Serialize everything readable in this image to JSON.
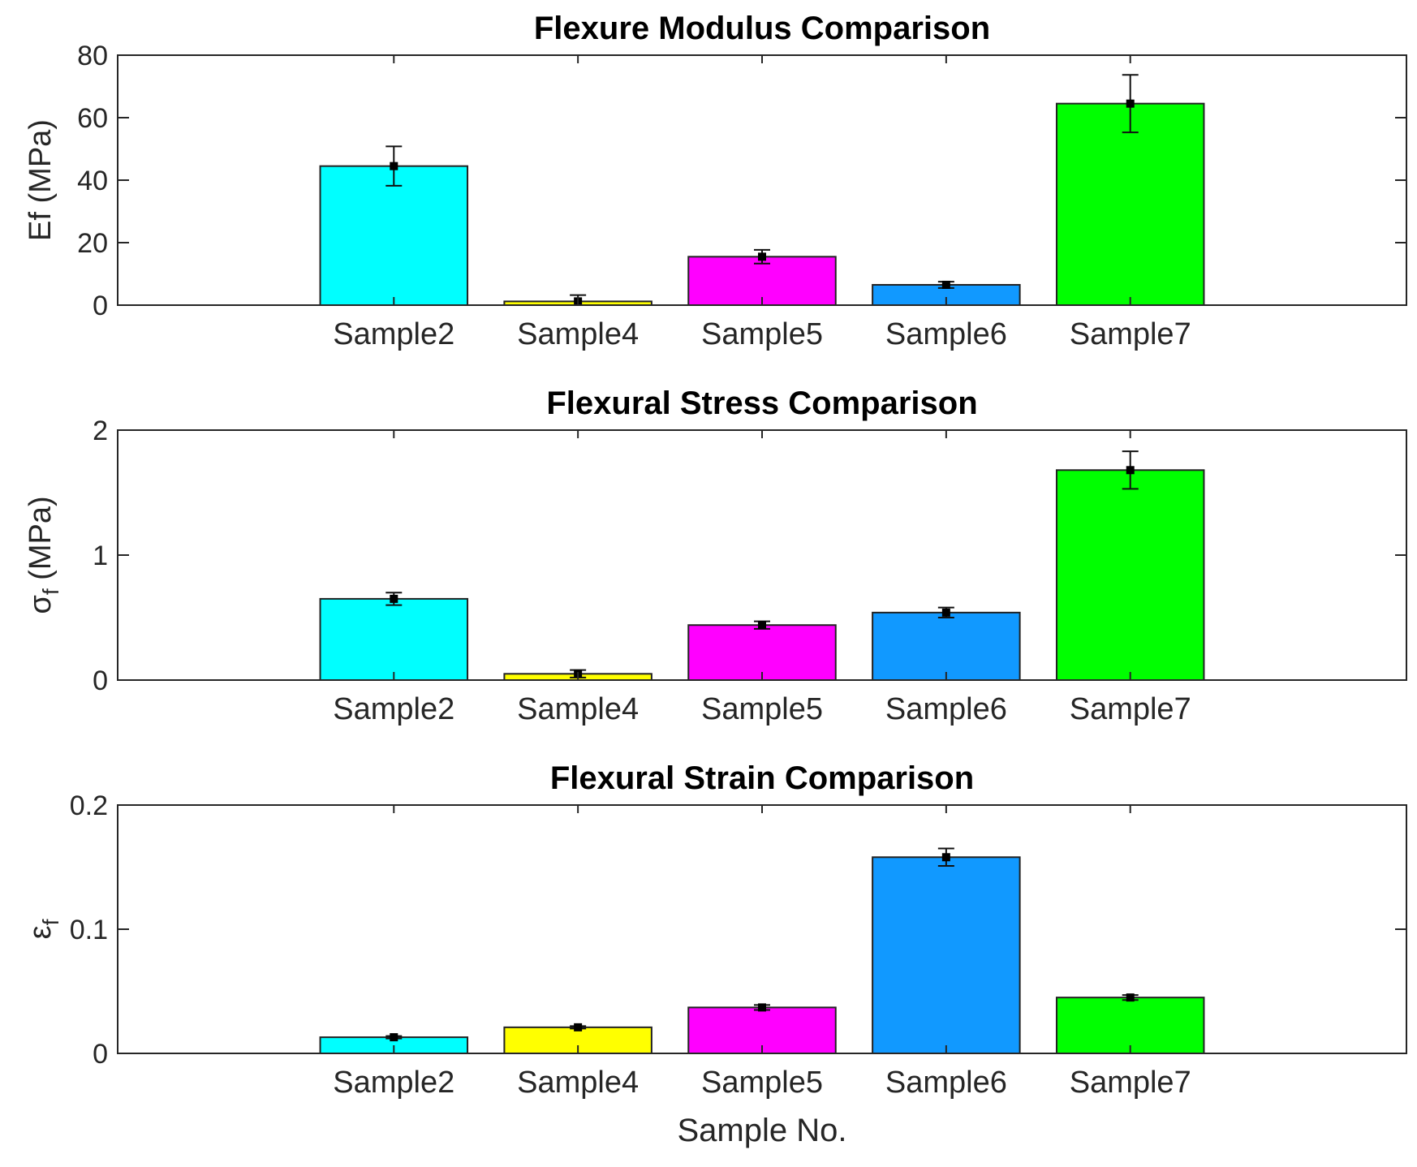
{
  "chart_data": [
    {
      "type": "bar",
      "title": "Flexure Modulus Comparison",
      "ylabel": "Ef (MPa)",
      "categories": [
        "Sample2",
        "Sample4",
        "Sample5",
        "Sample6",
        "Sample7"
      ],
      "values": [
        44.5,
        1.2,
        15.5,
        6.5,
        64.5
      ],
      "errors": [
        6.3,
        2.0,
        2.2,
        1.0,
        9.2
      ],
      "ylim": [
        0,
        80
      ],
      "yticks": [
        "0",
        "20",
        "40",
        "60",
        "80"
      ]
    },
    {
      "type": "bar",
      "title": "Flexural Stress Comparison",
      "ylabel": {
        "main": "σ",
        "subscript": "f",
        "unit": " (MPa)"
      },
      "categories": [
        "Sample2",
        "Sample4",
        "Sample5",
        "Sample6",
        "Sample7"
      ],
      "values": [
        0.65,
        0.05,
        0.44,
        0.54,
        1.68
      ],
      "errors": [
        0.05,
        0.03,
        0.03,
        0.04,
        0.15
      ],
      "ylim": [
        0,
        2
      ],
      "yticks": [
        "0",
        "1",
        "2"
      ]
    },
    {
      "type": "bar",
      "title": "Flexural Strain Comparison",
      "ylabel": {
        "main": "ε",
        "subscript": "f",
        "unit": ""
      },
      "xlabel": "Sample No.",
      "categories": [
        "Sample2",
        "Sample4",
        "Sample5",
        "Sample6",
        "Sample7"
      ],
      "values": [
        0.013,
        0.021,
        0.037,
        0.158,
        0.045
      ],
      "errors": [
        0.001,
        0.001,
        0.002,
        0.007,
        0.002
      ],
      "ylim": [
        0,
        0.2
      ],
      "yticks": [
        "0",
        "0.1",
        "0.2"
      ]
    }
  ],
  "colors": {
    "Sample2": "#00ffff",
    "Sample4": "#ffff00",
    "Sample5": "#ff00ff",
    "Sample6": "#1199ff",
    "Sample7": "#00ff00"
  }
}
